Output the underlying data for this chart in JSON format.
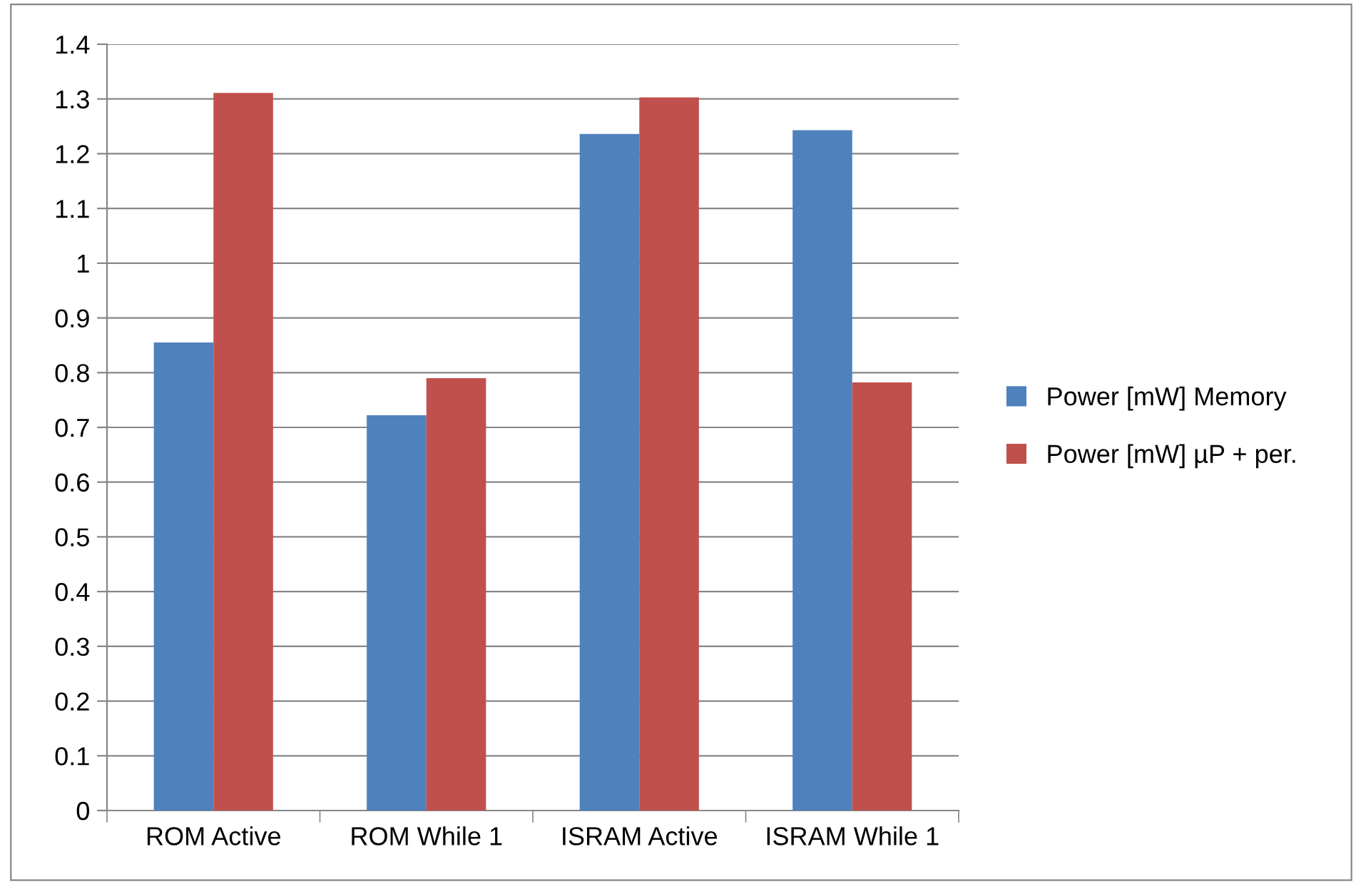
{
  "chart_data": {
    "type": "bar",
    "categories": [
      "ROM Active",
      "ROM While 1",
      "ISRAM Active",
      "ISRAM While 1"
    ],
    "series": [
      {
        "name": "Power [mW] Memory",
        "color": "#4f81bd",
        "values": [
          0.855,
          0.722,
          1.236,
          1.243
        ]
      },
      {
        "name": "Power [mW] µP + per.",
        "color": "#c0504d",
        "values": [
          1.311,
          0.79,
          1.303,
          0.782
        ]
      }
    ],
    "ylim": [
      0,
      1.4
    ],
    "yticks": [
      0,
      0.1,
      0.2,
      0.3,
      0.4,
      0.5,
      0.6,
      0.7,
      0.8,
      0.9,
      1,
      1.1,
      1.2,
      1.3,
      1.4
    ],
    "grid": "y",
    "legend": "right"
  }
}
